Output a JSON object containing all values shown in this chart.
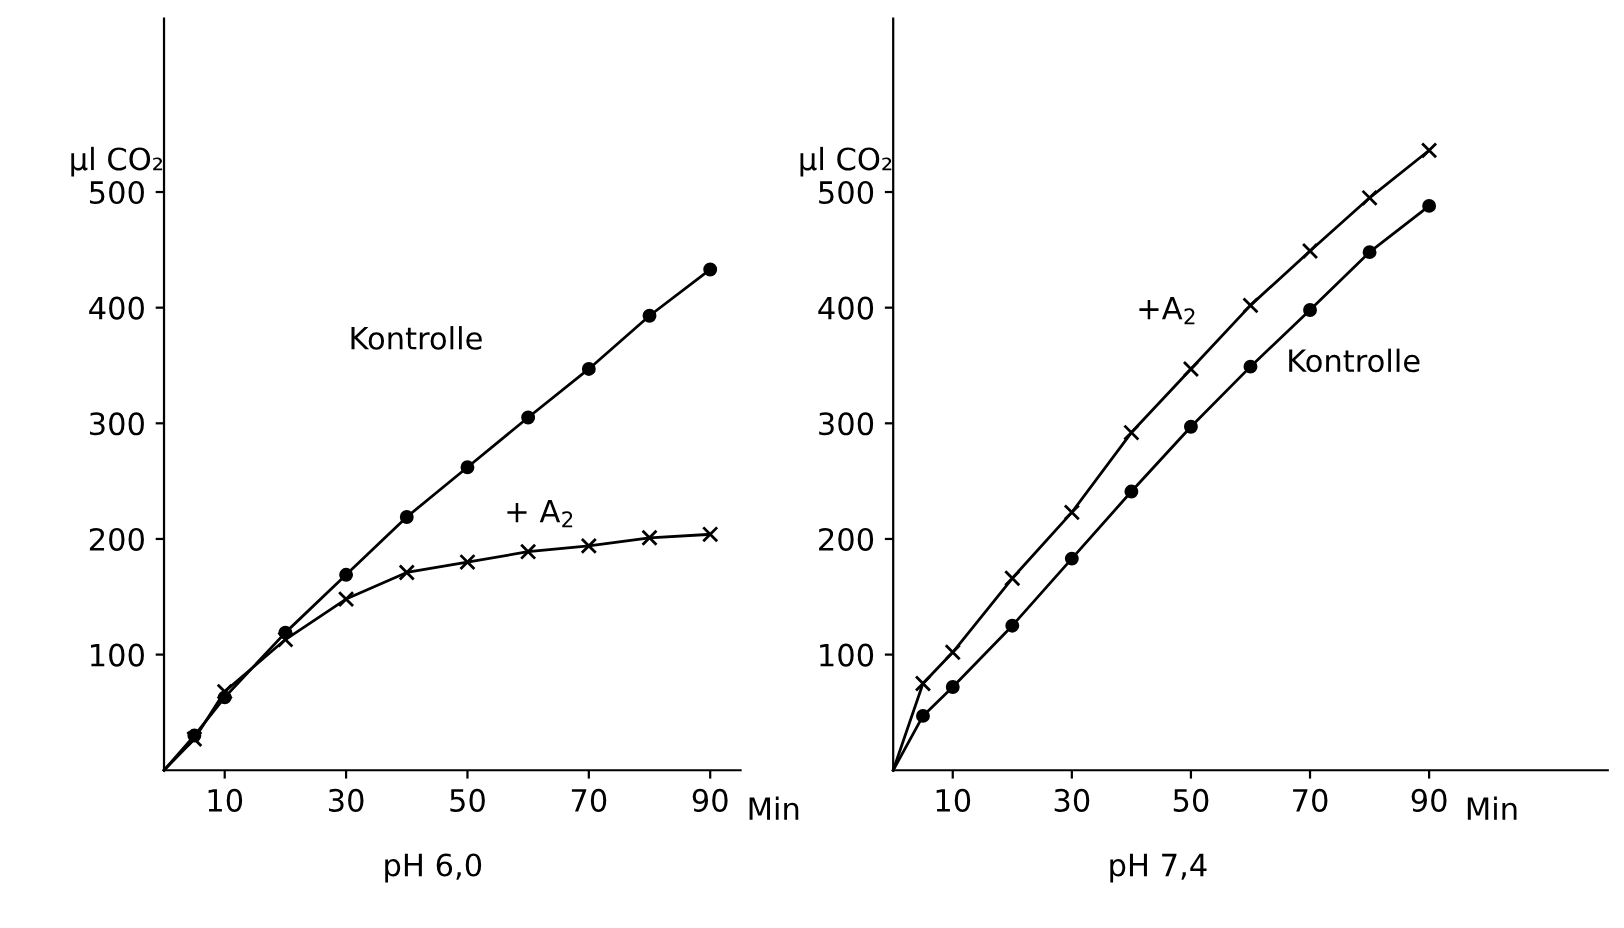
{
  "chart_data": [
    {
      "type": "line",
      "title": "pH 6,0",
      "xlabel": "Min",
      "ylabel": "µl CO₂",
      "xlim": [
        0,
        95
      ],
      "ylim": [
        0,
        650
      ],
      "xticks": [
        10,
        30,
        50,
        70,
        90
      ],
      "yticks": [
        100,
        200,
        300,
        400,
        500
      ],
      "grid": false,
      "legend": false,
      "line_style": "solid",
      "x": [
        0,
        5,
        10,
        20,
        30,
        40,
        50,
        60,
        70,
        80,
        90
      ],
      "series": [
        {
          "name": "Kontrolle",
          "color": "#000000",
          "marker": "circle",
          "values": [
            0,
            30,
            63,
            119,
            169,
            219,
            262,
            305,
            347,
            393,
            433
          ]
        },
        {
          "name": "+ A$_{2}$",
          "color": "#000000",
          "marker": "cross",
          "values": [
            0,
            27,
            68,
            113,
            148,
            171,
            180,
            189,
            194,
            201,
            204
          ]
        }
      ]
    },
    {
      "type": "line",
      "title": "pH 7,4",
      "xlabel": "Min",
      "ylabel": "µl CO₂",
      "xlim": [
        0,
        120
      ],
      "ylim": [
        0,
        650
      ],
      "xticks": [
        10,
        30,
        50,
        70,
        90
      ],
      "yticks": [
        100,
        200,
        300,
        400,
        500
      ],
      "grid": false,
      "legend": false,
      "line_style": "solid",
      "x": [
        0,
        5,
        10,
        20,
        30,
        40,
        50,
        60,
        70,
        80,
        90
      ],
      "series": [
        {
          "name": "+A$_{2}$",
          "color": "#000000",
          "marker": "cross",
          "values": [
            0,
            75,
            102,
            166,
            223,
            292,
            347,
            402,
            449,
            495,
            536
          ]
        },
        {
          "name": "Kontrolle",
          "color": "#000000",
          "marker": "circle",
          "values": [
            0,
            47,
            72,
            125,
            183,
            241,
            297,
            349,
            398,
            448,
            488
          ]
        }
      ]
    }
  ]
}
